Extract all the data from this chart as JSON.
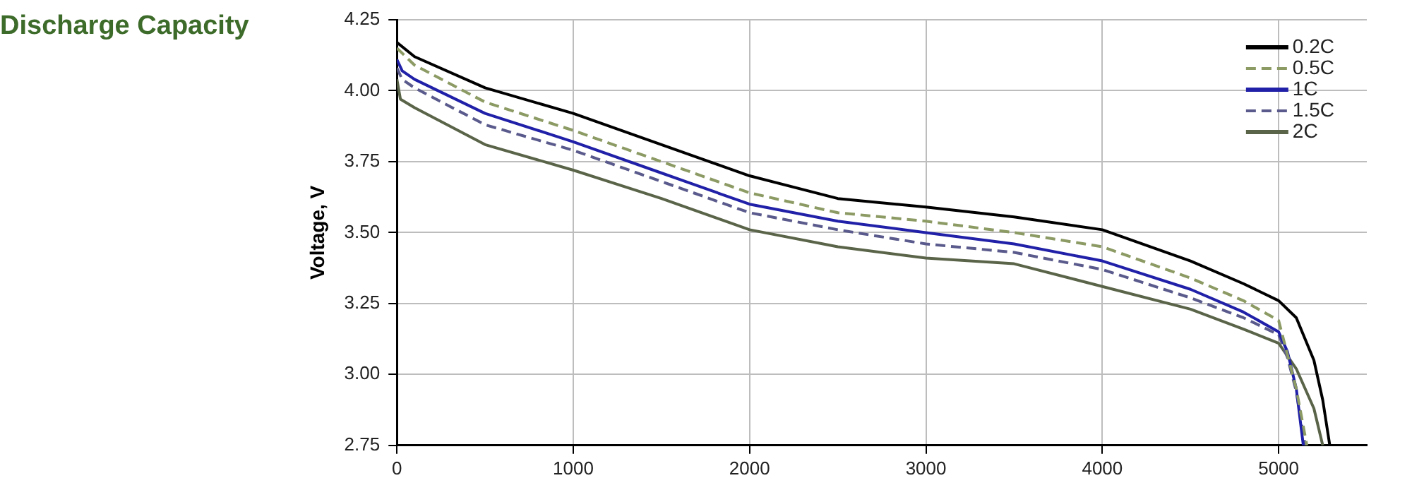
{
  "chart_data": {
    "type": "line",
    "title": "Discharge Capacity",
    "ylabel": "Voltage, V",
    "xlim": [
      0,
      5500
    ],
    "xticks": [
      0,
      1000,
      2000,
      3000,
      4000,
      5000
    ],
    "ylim": [
      2.75,
      4.25
    ],
    "yticks": [
      2.75,
      {
        "value": 3,
        "label": "3.00"
      },
      3.25,
      {
        "value": 3.5,
        "label": "3.50"
      },
      3.75,
      {
        "value": 4,
        "label": "4.00"
      },
      4.25
    ],
    "grid": true,
    "legend": "top right",
    "marker": "none",
    "series": [
      {
        "name": "0.2C",
        "color": "#000000",
        "line_style": "solid",
        "x": [
          0,
          100,
          500,
          1000,
          1500,
          2000,
          2500,
          3000,
          3500,
          4000,
          4500,
          4800,
          5000,
          5100,
          5200,
          5250,
          5290
        ],
        "values": [
          4.17,
          4.12,
          4.01,
          3.92,
          3.81,
          3.7,
          3.62,
          3.59,
          3.555,
          3.51,
          3.4,
          3.32,
          3.26,
          3.2,
          3.05,
          2.91,
          2.75
        ]
      },
      {
        "name": "0.5C",
        "color": "#8c9a64",
        "line_style": "dashed",
        "x": [
          0,
          100,
          500,
          1000,
          1500,
          2000,
          2500,
          3000,
          3500,
          4000,
          4500,
          4800,
          5000,
          5050,
          5100,
          5160
        ],
        "values": [
          4.15,
          4.09,
          3.96,
          3.86,
          3.75,
          3.64,
          3.57,
          3.54,
          3.5,
          3.45,
          3.34,
          3.26,
          3.19,
          3.07,
          2.95,
          2.75
        ]
      },
      {
        "name": "1C",
        "color": "#2020a8",
        "line_style": "solid",
        "x": [
          0,
          30,
          100,
          500,
          1000,
          1500,
          2000,
          2500,
          3000,
          3500,
          4000,
          4500,
          4800,
          5000,
          5050,
          5100,
          5140
        ],
        "values": [
          4.11,
          4.07,
          4.04,
          3.92,
          3.82,
          3.71,
          3.6,
          3.54,
          3.5,
          3.46,
          3.4,
          3.3,
          3.22,
          3.15,
          3.08,
          2.95,
          2.75
        ]
      },
      {
        "name": "1.5C",
        "color": "#5a5a8c",
        "line_style": "dashed",
        "x": [
          0,
          30,
          100,
          500,
          1000,
          1500,
          2000,
          2500,
          3000,
          3500,
          4000,
          4500,
          4800,
          5000,
          5050,
          5100,
          5150
        ],
        "values": [
          4.08,
          4.04,
          4.01,
          3.88,
          3.79,
          3.68,
          3.57,
          3.51,
          3.46,
          3.43,
          3.37,
          3.27,
          3.2,
          3.14,
          3.06,
          2.94,
          2.75
        ]
      },
      {
        "name": "2C",
        "color": "#5a6448",
        "line_style": "solid",
        "x": [
          0,
          20,
          100,
          500,
          1000,
          1500,
          2000,
          2500,
          3000,
          3500,
          4000,
          4500,
          4800,
          5000,
          5100,
          5200,
          5250
        ],
        "values": [
          4.04,
          3.97,
          3.94,
          3.81,
          3.72,
          3.62,
          3.51,
          3.45,
          3.41,
          3.39,
          3.31,
          3.23,
          3.16,
          3.11,
          3.02,
          2.88,
          2.75
        ]
      }
    ]
  }
}
